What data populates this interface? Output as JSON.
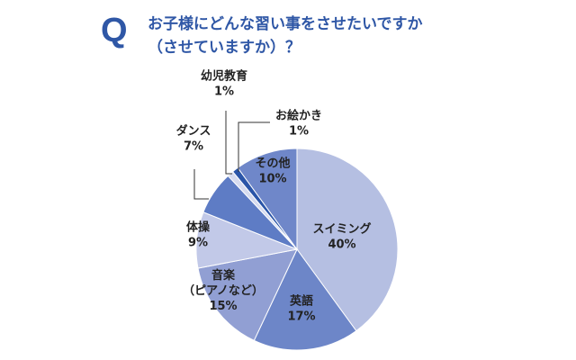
{
  "question": {
    "marker": "Q",
    "line1": "お子様にどんな習い事をさせたいですか",
    "line2": "（させていますか）？"
  },
  "colors": {
    "accent": "#2f57a6",
    "leader": "#333333",
    "slice_border": "#ffffff"
  },
  "chart_data": {
    "type": "pie",
    "title": "お子様にどんな習い事をさせたいですか（させていますか）？",
    "start": "12 o'clock",
    "direction": "clockwise",
    "slices": [
      {
        "label": [
          "スイミング"
        ],
        "value": 40,
        "value_text": "40%",
        "color": "#b5bfe2"
      },
      {
        "label": [
          "英語"
        ],
        "value": 17,
        "value_text": "17%",
        "color": "#6d86c8"
      },
      {
        "label": [
          "音楽",
          "（ピアノなど）"
        ],
        "value": 15,
        "value_text": "15%",
        "color": "#919fd3"
      },
      {
        "label": [
          "体操"
        ],
        "value": 9,
        "value_text": "9%",
        "color": "#c2c9e8"
      },
      {
        "label": [
          "ダンス"
        ],
        "value": 7,
        "value_text": "7%",
        "color": "#5e7cc5"
      },
      {
        "label": [
          "幼児教育"
        ],
        "value": 1,
        "value_text": "1%",
        "color": "#d6dbef"
      },
      {
        "label": [
          "お絵かき"
        ],
        "value": 1,
        "value_text": "1%",
        "color": "#2a55a8"
      },
      {
        "label": [
          "その他"
        ],
        "value": 10,
        "value_text": "10%",
        "color": "#6f87c9"
      }
    ]
  }
}
